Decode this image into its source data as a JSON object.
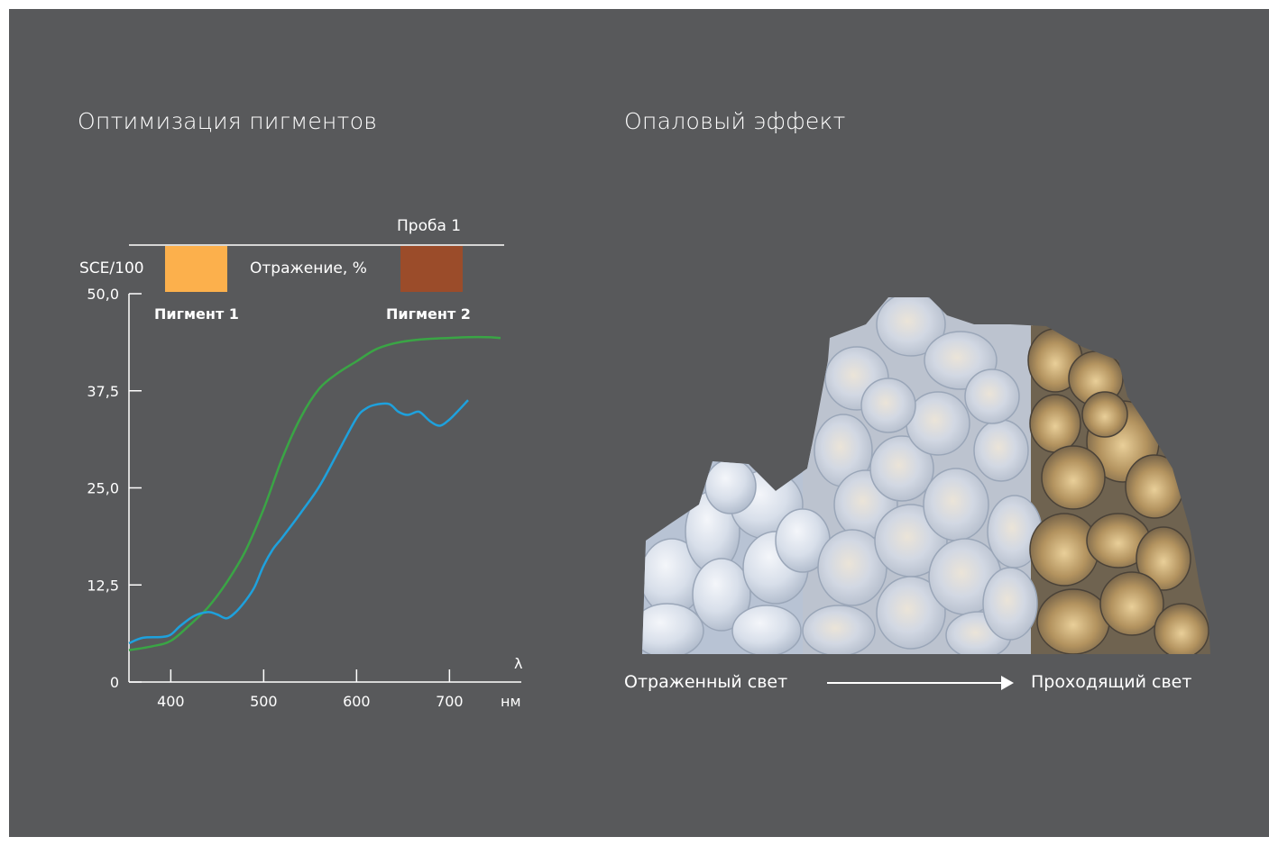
{
  "titles": {
    "left": "Оптимизация пигментов",
    "right": "Опаловый эффект"
  },
  "legend": {
    "sample_label": "Проба 1",
    "sce_label": "SCE/100",
    "reflection_label": "Отражение, %",
    "pigment1": {
      "label": "Пигмент 1",
      "color": "#fcb04c"
    },
    "pigment2": {
      "label": "Пигмент 2",
      "color": "#9b4c2a"
    }
  },
  "chart_data": {
    "type": "line",
    "xlabel": "нм",
    "ylabel": "λ",
    "xlim": [
      355,
      755
    ],
    "ylim": [
      0,
      50
    ],
    "x_ticks": [
      "400",
      "500",
      "600",
      "700"
    ],
    "x_tick_values": [
      400,
      500,
      600,
      700
    ],
    "y_ticks": [
      "0",
      "12,5",
      "25,0",
      "37,5",
      "50,0"
    ],
    "y_tick_values": [
      0,
      12.5,
      25,
      37.5,
      50
    ],
    "grid": false,
    "series": [
      {
        "color": "#3aa545",
        "x": [
          355,
          380,
          400,
          420,
          440,
          460,
          480,
          500,
          520,
          540,
          560,
          580,
          600,
          620,
          640,
          660,
          680,
          700,
          720,
          740,
          755
        ],
        "y": [
          4.1,
          4.6,
          5.3,
          7.3,
          9.6,
          12.8,
          16.8,
          22.3,
          28.8,
          34.1,
          37.8,
          39.8,
          41.3,
          42.8,
          43.6,
          44.0,
          44.2,
          44.3,
          44.4,
          44.4,
          44.3
        ]
      },
      {
        "color": "#1ea1dd",
        "x": [
          355,
          370,
          390,
          400,
          410,
          425,
          440,
          450,
          460,
          470,
          480,
          490,
          500,
          510,
          520,
          540,
          560,
          580,
          600,
          610,
          620,
          635,
          645,
          655,
          665,
          670,
          680,
          690,
          700,
          710,
          720
        ],
        "y": [
          5.0,
          5.7,
          5.8,
          6.1,
          7.2,
          8.5,
          9.0,
          8.7,
          8.2,
          9.0,
          10.4,
          12.2,
          15.0,
          17.1,
          18.6,
          21.8,
          25.2,
          29.6,
          34.0,
          35.2,
          35.7,
          35.8,
          34.8,
          34.4,
          34.8,
          34.6,
          33.5,
          33.0,
          33.8,
          35.0,
          36.3
        ]
      }
    ]
  },
  "opal": {
    "left_label": "Отраженный свет",
    "right_label": "Проходящий свет",
    "reflected_color": "#dce3ee",
    "transmitted_color": "#b69a6a"
  }
}
